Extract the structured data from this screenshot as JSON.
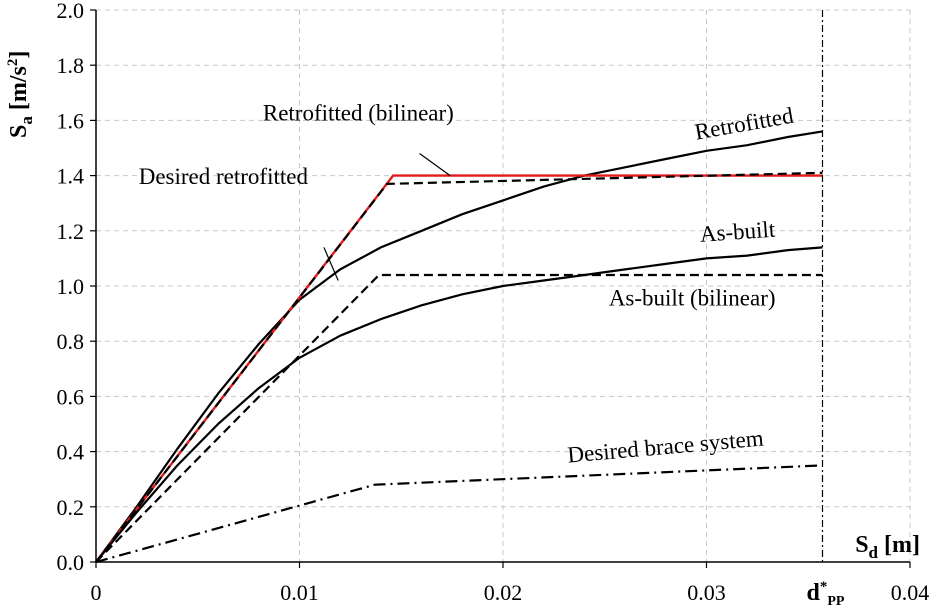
{
  "chart_data": {
    "type": "line",
    "xlabel": "S",
    "xlabel_sub": "d",
    "xlabel_unit": "[m]",
    "ylabel": "S",
    "ylabel_sub": "a",
    "ylabel_unit": "[m/s",
    "ylabel_sup": "2",
    "ylabel_close": "]",
    "xlim": [
      0,
      0.04
    ],
    "ylim": [
      0,
      2.0
    ],
    "x_ticks": [
      0,
      0.01,
      0.02,
      0.03,
      0.04
    ],
    "x_tick_labels": [
      "0",
      "0.01",
      "0.02",
      "0.03",
      "0.04"
    ],
    "y_ticks": [
      0,
      0.2,
      0.4,
      0.6,
      0.8,
      1.0,
      1.2,
      1.4,
      1.6,
      1.8,
      2.0
    ],
    "y_tick_labels": [
      "0.0",
      "0.2",
      "0.4",
      "0.6",
      "0.8",
      "1.0",
      "1.2",
      "1.4",
      "1.6",
      "1.8",
      "2.0"
    ],
    "grid": true,
    "vertical_marker": {
      "x": 0.0357,
      "label": "d",
      "label_sup": "*",
      "label_sub": "PP"
    },
    "series": [
      {
        "name": "Retrofitted",
        "color": "#000000",
        "style": "solid",
        "x": [
          0,
          0.002,
          0.004,
          0.006,
          0.008,
          0.01,
          0.012,
          0.014,
          0.016,
          0.018,
          0.02,
          0.022,
          0.024,
          0.026,
          0.028,
          0.03,
          0.032,
          0.034,
          0.0357
        ],
        "y": [
          0,
          0.2,
          0.41,
          0.61,
          0.79,
          0.95,
          1.06,
          1.14,
          1.2,
          1.26,
          1.31,
          1.36,
          1.4,
          1.43,
          1.46,
          1.49,
          1.51,
          1.54,
          1.56
        ]
      },
      {
        "name": "Retrofitted (bilinear)",
        "color": "#e31a1c",
        "style": "solid",
        "x": [
          0,
          0.0146,
          0.0357
        ],
        "y": [
          0,
          1.4,
          1.4
        ]
      },
      {
        "name": "Desired retrofitted",
        "color": "#000000",
        "style": "dashed",
        "x": [
          0,
          0.0143,
          0.0357
        ],
        "y": [
          0,
          1.37,
          1.41
        ]
      },
      {
        "name": "As-built",
        "color": "#000000",
        "style": "solid",
        "x": [
          0,
          0.002,
          0.004,
          0.006,
          0.008,
          0.01,
          0.012,
          0.014,
          0.016,
          0.018,
          0.02,
          0.022,
          0.024,
          0.026,
          0.028,
          0.03,
          0.032,
          0.034,
          0.0357
        ],
        "y": [
          0,
          0.18,
          0.35,
          0.5,
          0.63,
          0.74,
          0.82,
          0.88,
          0.93,
          0.97,
          1.0,
          1.02,
          1.04,
          1.06,
          1.08,
          1.1,
          1.11,
          1.13,
          1.14
        ]
      },
      {
        "name": "As-built (bilinear)",
        "color": "#000000",
        "style": "dashed",
        "x": [
          0,
          0.0139,
          0.0357
        ],
        "y": [
          0,
          1.04,
          1.04
        ]
      },
      {
        "name": "Desired brace system",
        "color": "#000000",
        "style": "dashdot",
        "x": [
          0,
          0.0137,
          0.0357
        ],
        "y": [
          0,
          0.28,
          0.35
        ]
      }
    ],
    "annotations": [
      {
        "text": "Retrofitted (bilinear)",
        "x": 0.0082,
        "y": 1.6,
        "anchor": "start",
        "rotate": 0,
        "leader": [
          0.0159,
          1.48,
          0.0174,
          1.4
        ]
      },
      {
        "text": "Desired retrofitted",
        "x": 0.0021,
        "y": 1.37,
        "anchor": "start",
        "rotate": 0,
        "leader": [
          0.0112,
          1.14,
          0.0119,
          1.02
        ]
      },
      {
        "text": "Retrofitted",
        "x": 0.0295,
        "y": 1.53,
        "anchor": "start",
        "rotate": -10,
        "leader": null
      },
      {
        "text": "As-built",
        "x": 0.0297,
        "y": 1.16,
        "anchor": "start",
        "rotate": -4,
        "leader": null
      },
      {
        "text": "As-built (bilinear)",
        "x": 0.0252,
        "y": 0.93,
        "anchor": "start",
        "rotate": 0,
        "leader": null
      },
      {
        "text": "Desired brace system",
        "x": 0.0232,
        "y": 0.36,
        "anchor": "start",
        "rotate": -5,
        "leader": null
      }
    ]
  }
}
